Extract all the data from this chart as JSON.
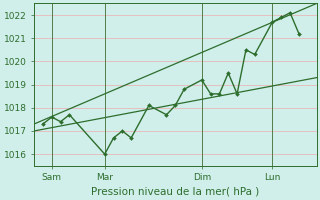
{
  "background_color": "#d0eeea",
  "grid_color": "#e8b8b8",
  "line_color": "#2d6e2d",
  "ylabel": "Pression niveau de la mer( hPa )",
  "ylim": [
    1015.5,
    1022.5
  ],
  "yticks": [
    1016,
    1017,
    1018,
    1019,
    1020,
    1021,
    1022
  ],
  "xtick_labels": [
    "Sam",
    "Mar",
    "Dim",
    "Lun"
  ],
  "xtick_positions": [
    0.5,
    3.5,
    9.0,
    13.0
  ],
  "vline_positions": [
    0.5,
    3.5,
    9.0,
    13.0
  ],
  "trend1_x": [
    -0.5,
    15.5
  ],
  "trend1_y": [
    1017.0,
    1019.3
  ],
  "trend2_x": [
    -0.5,
    15.5
  ],
  "trend2_y": [
    1017.3,
    1022.5
  ],
  "main_data_x": [
    0.0,
    0.5,
    1.0,
    1.5,
    3.5,
    4.0,
    4.5,
    5.0,
    6.0,
    7.0,
    7.5,
    8.0,
    9.0,
    9.5,
    10.0,
    10.5,
    11.0,
    11.5,
    12.0,
    13.0,
    13.5,
    14.0,
    14.5
  ],
  "main_data_y": [
    1017.3,
    1017.6,
    1017.4,
    1017.7,
    1016.0,
    1016.7,
    1017.0,
    1016.7,
    1018.1,
    1017.7,
    1018.1,
    1018.8,
    1019.2,
    1018.6,
    1018.6,
    1019.5,
    1018.6,
    1020.5,
    1020.3,
    1021.7,
    1021.9,
    1022.1,
    1021.2
  ],
  "xlim": [
    -0.5,
    15.5
  ],
  "figsize": [
    3.2,
    2.0
  ],
  "dpi": 100
}
